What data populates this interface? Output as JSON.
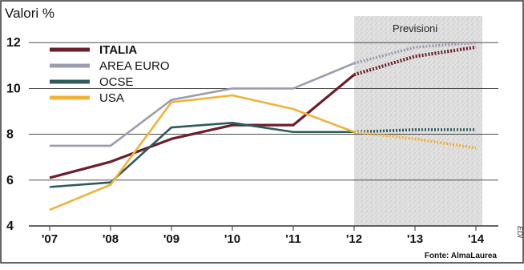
{
  "chart_data": {
    "type": "line",
    "ylabel": "Valori %",
    "categories": [
      "'07",
      "'08",
      "'09",
      "'10",
      "'11",
      "'12",
      "'13",
      "'14"
    ],
    "y_ticks": [
      "4",
      "6",
      "8",
      "10",
      "12"
    ],
    "ylim": [
      4,
      12.6
    ],
    "forecast_label": "Previsioni",
    "forecast_from": "'12",
    "source": "Fonte: AlmaLaurea",
    "side_mark": "EDI",
    "legend_position": "top-left",
    "grid": true,
    "series": [
      {
        "name": "ITALIA",
        "color": "#6b1f2c",
        "bold": true,
        "values": [
          6.1,
          6.8,
          7.8,
          8.4,
          8.4,
          10.6,
          11.4,
          11.8
        ]
      },
      {
        "name": "AREA EURO",
        "color": "#9c9caf",
        "bold": false,
        "values": [
          7.5,
          7.5,
          9.5,
          10.0,
          10.0,
          11.1,
          11.8,
          12.0
        ]
      },
      {
        "name": "OCSE",
        "color": "#2e5a5a",
        "bold": false,
        "values": [
          5.7,
          5.9,
          8.3,
          8.5,
          8.1,
          8.1,
          8.2,
          8.2
        ]
      },
      {
        "name": "USA",
        "color": "#f0b33a",
        "bold": false,
        "values": [
          4.7,
          5.8,
          9.4,
          9.7,
          9.1,
          8.1,
          7.8,
          7.4
        ]
      }
    ]
  }
}
